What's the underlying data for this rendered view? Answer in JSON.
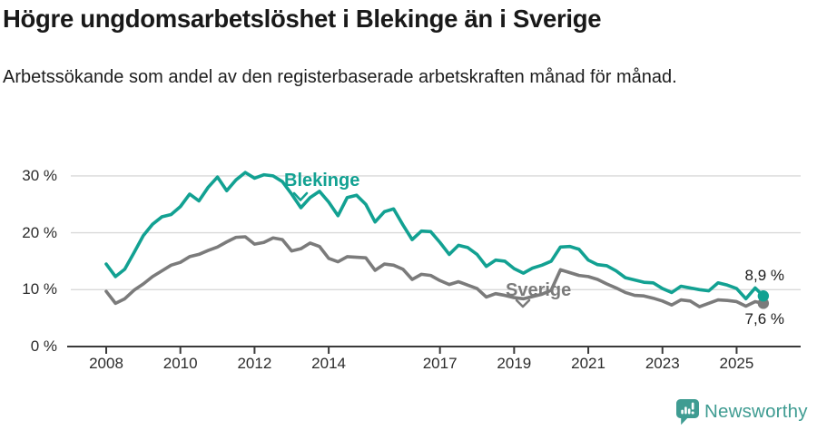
{
  "header": {
    "title": "Högre ungdomsarbetslöshet i Blekinge än i Sverige",
    "subtitle": "Arbetssökande som andel av den registerbaserade arbetskraften månad för månad."
  },
  "chart_data": {
    "type": "line",
    "title": "Högre ungdomsarbetslöshet i Blekinge än i Sverige",
    "xlabel": "",
    "ylabel": "",
    "grid": "horizontal-only",
    "xlim": [
      2008,
      2026
    ],
    "ylim": [
      0,
      32
    ],
    "x_ticks": [
      "2008",
      "2010",
      "2012",
      "2014",
      "2017",
      "2019",
      "2021",
      "2023",
      "2025"
    ],
    "x_tick_years": [
      2008,
      2010,
      2012,
      2014,
      2017,
      2019,
      2021,
      2023,
      2025
    ],
    "y_ticks": [
      "30 %",
      "20 %",
      "10 %",
      "0 %"
    ],
    "y_tick_values": [
      30,
      20,
      10,
      0
    ],
    "unit": "%",
    "frequency": "monthly (values estimated quarterly from plot)",
    "series": [
      {
        "name": "Blekinge",
        "color": "#12a192",
        "points": [
          [
            2008.0,
            14.5
          ],
          [
            2008.25,
            12.3
          ],
          [
            2008.5,
            13.6
          ],
          [
            2008.75,
            16.5
          ],
          [
            2009.0,
            19.5
          ],
          [
            2009.25,
            21.5
          ],
          [
            2009.5,
            22.8
          ],
          [
            2009.75,
            23.2
          ],
          [
            2010.0,
            24.6
          ],
          [
            2010.25,
            26.8
          ],
          [
            2010.5,
            25.6
          ],
          [
            2010.75,
            28.0
          ],
          [
            2011.0,
            29.8
          ],
          [
            2011.25,
            27.4
          ],
          [
            2011.5,
            29.3
          ],
          [
            2011.75,
            30.6
          ],
          [
            2012.0,
            29.6
          ],
          [
            2012.25,
            30.2
          ],
          [
            2012.5,
            30.0
          ],
          [
            2012.75,
            29.0
          ],
          [
            2013.0,
            26.8
          ],
          [
            2013.25,
            24.4
          ],
          [
            2013.5,
            26.2
          ],
          [
            2013.75,
            27.3
          ],
          [
            2014.0,
            25.4
          ],
          [
            2014.25,
            23.0
          ],
          [
            2014.5,
            26.2
          ],
          [
            2014.75,
            26.6
          ],
          [
            2015.0,
            25.0
          ],
          [
            2015.25,
            21.9
          ],
          [
            2015.5,
            23.7
          ],
          [
            2015.75,
            24.2
          ],
          [
            2016.0,
            21.4
          ],
          [
            2016.25,
            18.8
          ],
          [
            2016.5,
            20.3
          ],
          [
            2016.75,
            20.2
          ],
          [
            2017.0,
            18.3
          ],
          [
            2017.25,
            16.2
          ],
          [
            2017.5,
            17.8
          ],
          [
            2017.75,
            17.4
          ],
          [
            2018.0,
            16.2
          ],
          [
            2018.25,
            14.1
          ],
          [
            2018.5,
            15.2
          ],
          [
            2018.75,
            15.0
          ],
          [
            2019.0,
            13.7
          ],
          [
            2019.25,
            12.9
          ],
          [
            2019.5,
            13.8
          ],
          [
            2019.75,
            14.3
          ],
          [
            2020.0,
            15.0
          ],
          [
            2020.25,
            17.5
          ],
          [
            2020.5,
            17.6
          ],
          [
            2020.75,
            17.1
          ],
          [
            2021.0,
            15.2
          ],
          [
            2021.25,
            14.4
          ],
          [
            2021.5,
            14.2
          ],
          [
            2021.75,
            13.3
          ],
          [
            2022.0,
            12.1
          ],
          [
            2022.25,
            11.7
          ],
          [
            2022.5,
            11.3
          ],
          [
            2022.75,
            11.2
          ],
          [
            2023.0,
            10.2
          ],
          [
            2023.25,
            9.5
          ],
          [
            2023.5,
            10.6
          ],
          [
            2023.75,
            10.3
          ],
          [
            2024.0,
            10.0
          ],
          [
            2024.25,
            9.8
          ],
          [
            2024.5,
            11.2
          ],
          [
            2024.75,
            10.8
          ],
          [
            2025.0,
            10.2
          ],
          [
            2025.25,
            8.4
          ],
          [
            2025.5,
            10.3
          ],
          [
            2025.72,
            8.9
          ]
        ],
        "last_value": 8.9
      },
      {
        "name": "Sverige",
        "color": "#7b7b7b",
        "points": [
          [
            2008.0,
            9.7
          ],
          [
            2008.25,
            7.6
          ],
          [
            2008.5,
            8.4
          ],
          [
            2008.75,
            9.9
          ],
          [
            2009.0,
            11.0
          ],
          [
            2009.25,
            12.3
          ],
          [
            2009.5,
            13.3
          ],
          [
            2009.75,
            14.3
          ],
          [
            2010.0,
            14.8
          ],
          [
            2010.25,
            15.8
          ],
          [
            2010.5,
            16.2
          ],
          [
            2010.75,
            16.9
          ],
          [
            2011.0,
            17.5
          ],
          [
            2011.25,
            18.4
          ],
          [
            2011.5,
            19.2
          ],
          [
            2011.75,
            19.3
          ],
          [
            2012.0,
            18.0
          ],
          [
            2012.25,
            18.3
          ],
          [
            2012.5,
            19.1
          ],
          [
            2012.75,
            18.8
          ],
          [
            2013.0,
            16.8
          ],
          [
            2013.25,
            17.2
          ],
          [
            2013.5,
            18.2
          ],
          [
            2013.75,
            17.6
          ],
          [
            2014.0,
            15.5
          ],
          [
            2014.25,
            14.9
          ],
          [
            2014.5,
            15.8
          ],
          [
            2014.75,
            15.7
          ],
          [
            2015.0,
            15.6
          ],
          [
            2015.25,
            13.4
          ],
          [
            2015.5,
            14.5
          ],
          [
            2015.75,
            14.3
          ],
          [
            2016.0,
            13.6
          ],
          [
            2016.25,
            11.8
          ],
          [
            2016.5,
            12.7
          ],
          [
            2016.75,
            12.5
          ],
          [
            2017.0,
            11.6
          ],
          [
            2017.25,
            10.9
          ],
          [
            2017.5,
            11.4
          ],
          [
            2017.75,
            10.8
          ],
          [
            2018.0,
            10.2
          ],
          [
            2018.25,
            8.7
          ],
          [
            2018.5,
            9.3
          ],
          [
            2018.75,
            9.0
          ],
          [
            2019.0,
            8.6
          ],
          [
            2019.25,
            8.4
          ],
          [
            2019.5,
            8.8
          ],
          [
            2019.75,
            9.2
          ],
          [
            2020.0,
            9.9
          ],
          [
            2020.25,
            13.5
          ],
          [
            2020.5,
            13.0
          ],
          [
            2020.75,
            12.5
          ],
          [
            2021.0,
            12.3
          ],
          [
            2021.25,
            11.8
          ],
          [
            2021.5,
            11.0
          ],
          [
            2021.75,
            10.3
          ],
          [
            2022.0,
            9.5
          ],
          [
            2022.25,
            9.0
          ],
          [
            2022.5,
            8.9
          ],
          [
            2022.75,
            8.5
          ],
          [
            2023.0,
            8.0
          ],
          [
            2023.25,
            7.3
          ],
          [
            2023.5,
            8.2
          ],
          [
            2023.75,
            8.0
          ],
          [
            2024.0,
            7.0
          ],
          [
            2024.25,
            7.6
          ],
          [
            2024.5,
            8.2
          ],
          [
            2024.75,
            8.1
          ],
          [
            2025.0,
            7.9
          ],
          [
            2025.25,
            7.1
          ],
          [
            2025.5,
            7.9
          ],
          [
            2025.72,
            7.6
          ]
        ],
        "last_value": 7.6
      }
    ],
    "end_labels": [
      {
        "series": "Blekinge",
        "text": "8,9 %"
      },
      {
        "series": "Sverige",
        "text": "7,6 %"
      }
    ],
    "annotations": {
      "blekinge_label": "Blekinge",
      "sverige_label": "Sverige"
    }
  },
  "colors": {
    "blekinge": "#12a192",
    "sverige": "#7b7b7b",
    "grid": "#d9d9d9",
    "axis": "#3a3a3a",
    "brand": "#3f9c92"
  },
  "footer": {
    "brand": "Newsworthy"
  }
}
